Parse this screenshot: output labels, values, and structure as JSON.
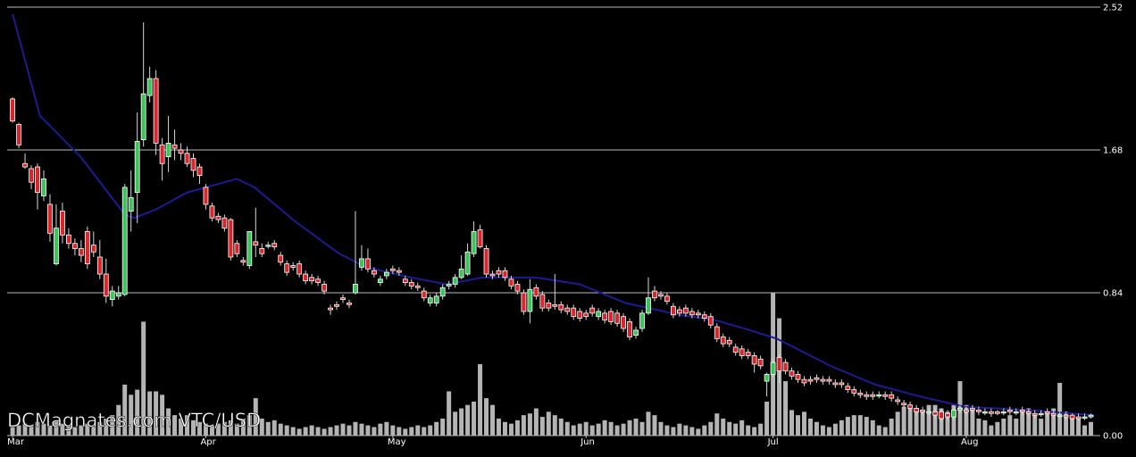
{
  "chart_data": {
    "type": "candlestick",
    "watermark": "DCMagnates.com VTC/USD",
    "xlim": [
      -0.3,
      174.5
    ],
    "xticks": [
      {
        "value": 0,
        "label": "Mar"
      },
      {
        "value": 31,
        "label": "Apr"
      },
      {
        "value": 61,
        "label": "May"
      },
      {
        "value": 92,
        "label": "Jun"
      },
      {
        "value": 122,
        "label": "Jul"
      },
      {
        "value": 153,
        "label": "Aug"
      }
    ],
    "ylim": [
      0,
      2.52
    ],
    "yticks": [
      {
        "value": 0,
        "label": "0.00"
      },
      {
        "value": 0.84,
        "label": "0.84"
      },
      {
        "value": 1.68,
        "label": "1.68"
      },
      {
        "value": 2.52,
        "label": "2.52"
      }
    ],
    "grid": true,
    "up_color": "#3cc35a",
    "down_color": "#d9262b",
    "volume_color": "#b4b4b4",
    "candles": [
      [
        1.98,
        1.99,
        1.84,
        1.85
      ],
      [
        1.83,
        1.84,
        1.69,
        1.71
      ],
      [
        1.6,
        1.66,
        1.57,
        1.58
      ],
      [
        1.57,
        1.59,
        1.45,
        1.49
      ],
      [
        1.58,
        1.6,
        1.33,
        1.43
      ],
      [
        1.41,
        1.56,
        1.38,
        1.51
      ],
      [
        1.36,
        1.42,
        1.14,
        1.19
      ],
      [
        1.01,
        1.36,
        1.0,
        1.22
      ],
      [
        1.32,
        1.37,
        1.13,
        1.18
      ],
      [
        1.18,
        1.22,
        1.1,
        1.13
      ],
      [
        1.13,
        1.16,
        1.06,
        1.1
      ],
      [
        1.1,
        1.15,
        1.02,
        1.06
      ],
      [
        1.2,
        1.23,
        0.98,
        1.01
      ],
      [
        1.12,
        1.2,
        1.05,
        1.08
      ],
      [
        1.05,
        1.15,
        0.92,
        0.95
      ],
      [
        0.95,
        1.04,
        0.78,
        0.82
      ],
      [
        0.8,
        0.88,
        0.76,
        0.85
      ],
      [
        0.82,
        0.88,
        0.8,
        0.84
      ],
      [
        0.83,
        1.48,
        0.82,
        1.46
      ],
      [
        1.32,
        1.56,
        1.2,
        1.4
      ],
      [
        1.43,
        1.9,
        1.25,
        1.73
      ],
      [
        1.74,
        2.43,
        1.7,
        2.01
      ],
      [
        2.0,
        2.17,
        1.96,
        2.1
      ],
      [
        2.1,
        2.15,
        1.65,
        1.72
      ],
      [
        1.71,
        1.75,
        1.5,
        1.6
      ],
      [
        1.64,
        1.88,
        1.55,
        1.72
      ],
      [
        1.71,
        1.8,
        1.62,
        1.69
      ],
      [
        1.68,
        1.72,
        1.62,
        1.66
      ],
      [
        1.66,
        1.7,
        1.58,
        1.6
      ],
      [
        1.63,
        1.66,
        1.52,
        1.56
      ],
      [
        1.58,
        1.6,
        1.48,
        1.53
      ],
      [
        1.46,
        1.48,
        1.33,
        1.36
      ],
      [
        1.35,
        1.37,
        1.26,
        1.28
      ],
      [
        1.29,
        1.31,
        1.25,
        1.27
      ],
      [
        1.28,
        1.3,
        1.2,
        1.22
      ],
      [
        1.27,
        1.28,
        1.03,
        1.05
      ],
      [
        1.13,
        1.15,
        1.05,
        1.07
      ],
      [
        1.03,
        1.05,
        1.0,
        1.02
      ],
      [
        1.0,
        1.2,
        0.98,
        1.2
      ],
      [
        1.14,
        1.34,
        1.05,
        1.12
      ],
      [
        1.1,
        1.13,
        1.05,
        1.07
      ],
      [
        1.12,
        1.14,
        1.1,
        1.12
      ],
      [
        1.13,
        1.15,
        1.09,
        1.11
      ],
      [
        1.06,
        1.08,
        1.0,
        1.02
      ],
      [
        1.01,
        1.03,
        0.94,
        0.96
      ],
      [
        1.0,
        1.02,
        0.97,
        0.99
      ],
      [
        1.01,
        1.03,
        0.93,
        0.95
      ],
      [
        0.95,
        0.97,
        0.89,
        0.91
      ],
      [
        0.93,
        0.95,
        0.89,
        0.91
      ],
      [
        0.92,
        0.94,
        0.88,
        0.9
      ],
      [
        0.89,
        0.91,
        0.83,
        0.85
      ],
      [
        0.75,
        0.77,
        0.71,
        0.74
      ],
      [
        0.77,
        0.79,
        0.74,
        0.76
      ],
      [
        0.81,
        0.83,
        0.78,
        0.8
      ],
      [
        0.78,
        0.8,
        0.75,
        0.77
      ],
      [
        0.84,
        1.32,
        0.83,
        0.89
      ],
      [
        0.99,
        1.12,
        0.97,
        1.04
      ],
      [
        1.04,
        1.1,
        0.96,
        0.98
      ],
      [
        0.97,
        0.99,
        0.93,
        0.95
      ],
      [
        0.9,
        0.94,
        0.88,
        0.92
      ],
      [
        0.94,
        0.98,
        0.92,
        0.96
      ],
      [
        0.98,
        1.0,
        0.95,
        0.97
      ],
      [
        0.97,
        0.99,
        0.94,
        0.96
      ],
      [
        0.92,
        0.94,
        0.88,
        0.9
      ],
      [
        0.9,
        0.92,
        0.86,
        0.88
      ],
      [
        0.88,
        0.9,
        0.85,
        0.87
      ],
      [
        0.85,
        0.87,
        0.79,
        0.81
      ],
      [
        0.78,
        0.83,
        0.76,
        0.81
      ],
      [
        0.78,
        0.84,
        0.76,
        0.82
      ],
      [
        0.82,
        0.89,
        0.8,
        0.87
      ],
      [
        0.88,
        0.91,
        0.86,
        0.89
      ],
      [
        0.89,
        0.95,
        0.87,
        0.93
      ],
      [
        0.93,
        1.06,
        0.92,
        0.98
      ],
      [
        0.95,
        1.13,
        0.94,
        1.08
      ],
      [
        1.07,
        1.26,
        1.05,
        1.2
      ],
      [
        1.21,
        1.24,
        1.1,
        1.11
      ],
      [
        1.1,
        1.12,
        0.93,
        0.95
      ],
      [
        0.95,
        0.97,
        0.92,
        0.94
      ],
      [
        0.97,
        0.99,
        0.93,
        0.95
      ],
      [
        0.97,
        0.99,
        0.91,
        0.93
      ],
      [
        0.92,
        0.94,
        0.86,
        0.88
      ],
      [
        0.89,
        0.91,
        0.83,
        0.85
      ],
      [
        0.84,
        0.86,
        0.71,
        0.73
      ],
      [
        0.73,
        0.92,
        0.66,
        0.86
      ],
      [
        0.87,
        0.89,
        0.8,
        0.82
      ],
      [
        0.83,
        0.85,
        0.73,
        0.75
      ],
      [
        0.78,
        0.8,
        0.73,
        0.75
      ],
      [
        0.77,
        0.95,
        0.74,
        0.76
      ],
      [
        0.77,
        0.79,
        0.72,
        0.74
      ],
      [
        0.75,
        0.77,
        0.71,
        0.73
      ],
      [
        0.75,
        0.77,
        0.68,
        0.7
      ],
      [
        0.73,
        0.75,
        0.67,
        0.69
      ],
      [
        0.72,
        0.74,
        0.68,
        0.7
      ],
      [
        0.75,
        0.77,
        0.7,
        0.72
      ],
      [
        0.7,
        0.75,
        0.68,
        0.73
      ],
      [
        0.72,
        0.74,
        0.66,
        0.68
      ],
      [
        0.73,
        0.75,
        0.65,
        0.67
      ],
      [
        0.72,
        0.74,
        0.64,
        0.66
      ],
      [
        0.7,
        0.72,
        0.61,
        0.63
      ],
      [
        0.67,
        0.69,
        0.56,
        0.58
      ],
      [
        0.59,
        0.64,
        0.57,
        0.62
      ],
      [
        0.63,
        0.74,
        0.61,
        0.72
      ],
      [
        0.72,
        0.93,
        0.71,
        0.81
      ],
      [
        0.85,
        0.88,
        0.79,
        0.81
      ],
      [
        0.83,
        0.85,
        0.8,
        0.82
      ],
      [
        0.82,
        0.84,
        0.77,
        0.79
      ],
      [
        0.76,
        0.78,
        0.69,
        0.71
      ],
      [
        0.74,
        0.76,
        0.7,
        0.72
      ],
      [
        0.75,
        0.77,
        0.7,
        0.72
      ],
      [
        0.73,
        0.75,
        0.69,
        0.71
      ],
      [
        0.72,
        0.74,
        0.69,
        0.71
      ],
      [
        0.71,
        0.73,
        0.67,
        0.69
      ],
      [
        0.7,
        0.72,
        0.63,
        0.65
      ],
      [
        0.64,
        0.66,
        0.55,
        0.57
      ],
      [
        0.58,
        0.6,
        0.52,
        0.54
      ],
      [
        0.56,
        0.58,
        0.52,
        0.54
      ],
      [
        0.52,
        0.54,
        0.47,
        0.49
      ],
      [
        0.51,
        0.53,
        0.45,
        0.47
      ],
      [
        0.49,
        0.51,
        0.45,
        0.47
      ],
      [
        0.47,
        0.49,
        0.37,
        0.42
      ],
      [
        0.45,
        0.47,
        0.39,
        0.41
      ],
      [
        0.32,
        0.37,
        0.23,
        0.36
      ],
      [
        0.36,
        0.45,
        0.34,
        0.43
      ],
      [
        0.46,
        0.48,
        0.31,
        0.38
      ],
      [
        0.43,
        0.45,
        0.36,
        0.38
      ],
      [
        0.38,
        0.4,
        0.33,
        0.35
      ],
      [
        0.36,
        0.38,
        0.31,
        0.33
      ],
      [
        0.33,
        0.35,
        0.29,
        0.31
      ],
      [
        0.33,
        0.35,
        0.3,
        0.32
      ],
      [
        0.34,
        0.36,
        0.31,
        0.33
      ],
      [
        0.33,
        0.35,
        0.3,
        0.32
      ],
      [
        0.33,
        0.35,
        0.3,
        0.32
      ],
      [
        0.31,
        0.33,
        0.28,
        0.3
      ],
      [
        0.31,
        0.33,
        0.28,
        0.3
      ],
      [
        0.29,
        0.31,
        0.25,
        0.27
      ],
      [
        0.27,
        0.29,
        0.23,
        0.25
      ],
      [
        0.25,
        0.27,
        0.22,
        0.24
      ],
      [
        0.24,
        0.26,
        0.21,
        0.23
      ],
      [
        0.24,
        0.26,
        0.21,
        0.23
      ],
      [
        0.24,
        0.26,
        0.22,
        0.24
      ],
      [
        0.24,
        0.26,
        0.21,
        0.23
      ],
      [
        0.24,
        0.26,
        0.2,
        0.22
      ],
      [
        0.21,
        0.23,
        0.18,
        0.2
      ],
      [
        0.19,
        0.21,
        0.16,
        0.18
      ],
      [
        0.18,
        0.2,
        0.14,
        0.16
      ],
      [
        0.16,
        0.18,
        0.12,
        0.14
      ],
      [
        0.15,
        0.17,
        0.12,
        0.14
      ],
      [
        0.14,
        0.16,
        0.12,
        0.14
      ],
      [
        0.14,
        0.16,
        0.1,
        0.12
      ],
      [
        0.14,
        0.16,
        0.08,
        0.1
      ],
      [
        0.13,
        0.15,
        0.09,
        0.11
      ],
      [
        0.11,
        0.17,
        0.09,
        0.15
      ],
      [
        0.15,
        0.18,
        0.13,
        0.16
      ],
      [
        0.15,
        0.17,
        0.12,
        0.14
      ],
      [
        0.16,
        0.18,
        0.13,
        0.15
      ],
      [
        0.15,
        0.17,
        0.12,
        0.14
      ],
      [
        0.14,
        0.16,
        0.12,
        0.14
      ],
      [
        0.14,
        0.16,
        0.11,
        0.13
      ],
      [
        0.14,
        0.15,
        0.12,
        0.13
      ],
      [
        0.14,
        0.16,
        0.12,
        0.14
      ],
      [
        0.15,
        0.17,
        0.12,
        0.14
      ],
      [
        0.14,
        0.16,
        0.12,
        0.14
      ],
      [
        0.15,
        0.17,
        0.12,
        0.14
      ],
      [
        0.14,
        0.16,
        0.11,
        0.13
      ],
      [
        0.13,
        0.15,
        0.1,
        0.12
      ],
      [
        0.13,
        0.15,
        0.11,
        0.13
      ],
      [
        0.14,
        0.16,
        0.11,
        0.13
      ],
      [
        0.13,
        0.15,
        0.1,
        0.12
      ],
      [
        0.12,
        0.14,
        0.1,
        0.12
      ],
      [
        0.12,
        0.14,
        0.09,
        0.11
      ],
      [
        0.12,
        0.13,
        0.09,
        0.1
      ],
      [
        0.11,
        0.13,
        0.09,
        0.1
      ],
      [
        0.11,
        0.13,
        0.09,
        0.11
      ],
      [
        0.11,
        0.13,
        0.1,
        0.12
      ]
    ],
    "volume": [
      0.05,
      0.06,
      0.07,
      0.06,
      0.08,
      0.07,
      0.06,
      0.09,
      0.07,
      0.06,
      0.05,
      0.06,
      0.07,
      0.06,
      0.08,
      0.1,
      0.12,
      0.18,
      0.3,
      0.24,
      0.27,
      0.67,
      0.26,
      0.26,
      0.24,
      0.16,
      0.12,
      0.1,
      0.12,
      0.09,
      0.08,
      0.07,
      0.06,
      0.07,
      0.08,
      0.09,
      0.07,
      0.1,
      0.12,
      0.22,
      0.1,
      0.08,
      0.09,
      0.07,
      0.06,
      0.05,
      0.04,
      0.05,
      0.06,
      0.05,
      0.04,
      0.05,
      0.06,
      0.07,
      0.06,
      0.08,
      0.07,
      0.06,
      0.05,
      0.07,
      0.08,
      0.06,
      0.05,
      0.04,
      0.05,
      0.06,
      0.05,
      0.06,
      0.08,
      0.1,
      0.26,
      0.14,
      0.16,
      0.18,
      0.2,
      0.42,
      0.22,
      0.18,
      0.1,
      0.08,
      0.07,
      0.09,
      0.12,
      0.13,
      0.16,
      0.11,
      0.14,
      0.12,
      0.1,
      0.08,
      0.06,
      0.07,
      0.08,
      0.06,
      0.07,
      0.09,
      0.08,
      0.06,
      0.07,
      0.09,
      0.1,
      0.08,
      0.14,
      0.12,
      0.08,
      0.06,
      0.05,
      0.07,
      0.06,
      0.05,
      0.04,
      0.06,
      0.08,
      0.13,
      0.1,
      0.08,
      0.07,
      0.09,
      0.06,
      0.05,
      0.07,
      0.2,
      0.84,
      0.69,
      0.32,
      0.15,
      0.12,
      0.14,
      0.1,
      0.08,
      0.06,
      0.05,
      0.07,
      0.09,
      0.11,
      0.12,
      0.12,
      0.11,
      0.09,
      0.06,
      0.05,
      0.1,
      0.14,
      0.17,
      0.18,
      0.16,
      0.14,
      0.18,
      0.18,
      0.16,
      0.14,
      0.18,
      0.32,
      0.18,
      0.16,
      0.1,
      0.09,
      0.06,
      0.08,
      0.1,
      0.12,
      0.1,
      0.14,
      0.16,
      0.12,
      0.1,
      0.14,
      0.16,
      0.31,
      0.14,
      0.12,
      0.1,
      0.06,
      0.08
    ],
    "overlay": {
      "color": "#1c1c90",
      "x": [
        0,
        4.4,
        10.9,
        18,
        19.5,
        23,
        28,
        36,
        38.8,
        45.3,
        52.4,
        56.7,
        63.9,
        69.6,
        75.4,
        84,
        91,
        98.3,
        107,
        112.6,
        118.3,
        122.6,
        131.2,
        138.4,
        145.6,
        152.7,
        162.8,
        173.5
      ],
      "values": [
        2.48,
        1.88,
        1.64,
        1.3,
        1.28,
        1.33,
        1.43,
        1.51,
        1.46,
        1.26,
        1.07,
        0.99,
        0.93,
        0.89,
        0.93,
        0.93,
        0.89,
        0.78,
        0.71,
        0.68,
        0.62,
        0.57,
        0.41,
        0.3,
        0.23,
        0.17,
        0.15,
        0.12
      ]
    }
  }
}
